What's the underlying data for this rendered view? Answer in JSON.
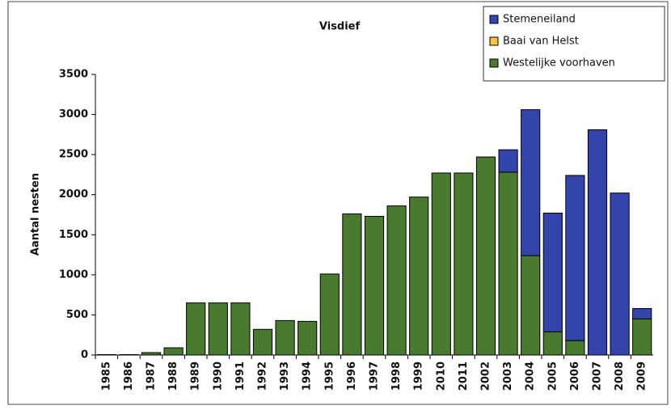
{
  "chart_data": {
    "type": "stacked_bar",
    "title": "Visdief",
    "y_label": "Aantal nesten",
    "categories": [
      "1985",
      "1986",
      "1987",
      "1988",
      "1989",
      "1990",
      "1991",
      "1992",
      "1993",
      "1994",
      "1995",
      "1996",
      "1997",
      "1998",
      "1999",
      "2010",
      "2011",
      "2002",
      "2003",
      "2004",
      "2005",
      "2006",
      "2007",
      "2008",
      "2009"
    ],
    "series": [
      {
        "name": "Stemeneiland",
        "color": "#3344aa",
        "values": [
          0,
          0,
          0,
          0,
          0,
          0,
          0,
          0,
          0,
          0,
          0,
          0,
          0,
          0,
          0,
          0,
          0,
          0,
          280,
          1820,
          1480,
          2060,
          2810,
          2020,
          130
        ]
      },
      {
        "name": "Baai van Helst",
        "color": "#f5c542",
        "values": [
          0,
          0,
          0,
          0,
          0,
          0,
          0,
          0,
          0,
          0,
          0,
          0,
          0,
          0,
          0,
          0,
          0,
          0,
          0,
          0,
          0,
          0,
          0,
          0,
          0
        ]
      },
      {
        "name": "Westelijke voorhaven",
        "color": "#4a7a30",
        "values": [
          5,
          5,
          30,
          90,
          650,
          650,
          650,
          320,
          430,
          420,
          1010,
          1760,
          1730,
          1860,
          1970,
          2270,
          2270,
          2470,
          2280,
          1240,
          290,
          180,
          0,
          0,
          450
        ]
      }
    ],
    "ylim": [
      0,
      3500
    ],
    "yticks": [
      0,
      500,
      1000,
      1500,
      2000,
      2500,
      3000,
      3500
    ],
    "legend": "top-right",
    "grid": false
  }
}
